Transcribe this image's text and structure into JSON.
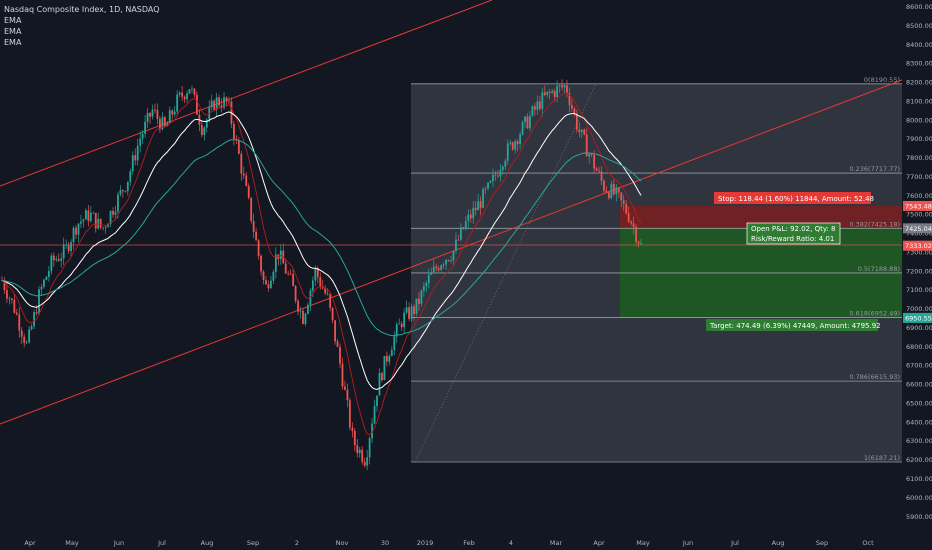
{
  "legend": {
    "title": "Nasdaq Composite Index, 1D, NASDAQ",
    "indicators": [
      "EMA",
      "EMA",
      "EMA"
    ]
  },
  "colors": {
    "background": "#131722",
    "up": "#26a69a",
    "down": "#ef5350",
    "channel": "#e53935",
    "ema_fast": "#b71c1c",
    "ema_mid": "#ffffff",
    "ema_slow": "#26a69a",
    "stop_zone": "#7a1f1f",
    "target_zone": "#1b5e20"
  },
  "chart_data": {
    "type": "candlestick",
    "title": "Nasdaq Composite Index, 1D, NASDAQ",
    "ylim": [
      5850,
      8650
    ],
    "y_ticks": [
      "8600.00",
      "8500.00",
      "8400.00",
      "8300.00",
      "8200.00",
      "8100.00",
      "8000.00",
      "7900.00",
      "7800.00",
      "7700.00",
      "7600.00",
      "7500.00",
      "7400.00",
      "7300.00",
      "7200.00",
      "7100.00",
      "7000.00",
      "6900.00",
      "6800.00",
      "6700.00",
      "6600.00",
      "6500.00",
      "6400.00",
      "6300.00",
      "6200.00",
      "6100.00",
      "6000.00",
      "5900.00"
    ],
    "x_ticks": [
      "Apr",
      "May",
      "Jun",
      "Jul",
      "Aug",
      "Sep",
      "2",
      "Nov",
      "30",
      "2019",
      "Feb",
      "4",
      "Mar",
      "Apr",
      "May",
      "Jun",
      "Jul",
      "Aug",
      "Sep",
      "Oct",
      "Nov"
    ],
    "price_path": [
      7150,
      7000,
      6800,
      7080,
      7250,
      7300,
      7450,
      7500,
      7420,
      7550,
      7680,
      7900,
      8050,
      7950,
      8100,
      8180,
      7950,
      8100,
      8090,
      7780,
      7450,
      7100,
      7300,
      7150,
      6950,
      7200,
      7050,
      6700,
      6300,
      6200,
      6600,
      6800,
      6950,
      7000,
      7150,
      7250,
      7300,
      7450,
      7550,
      7650,
      7800,
      7900,
      8000,
      8100,
      8150,
      8180,
      7950,
      7800,
      7650,
      7600,
      7500,
      7333
    ],
    "fib_levels": [
      {
        "label": "0(8190.55)",
        "value": 8190.55
      },
      {
        "label": "0.236(7717.77)",
        "value": 7717.77
      },
      {
        "label": "0.382(7425.18)",
        "value": 7425.18
      },
      {
        "label": "0.5(7188.88)",
        "value": 7188.88
      },
      {
        "label": "0.618(6952.49)",
        "value": 6952.49
      },
      {
        "label": "0.786(6615.93)",
        "value": 6615.93
      },
      {
        "label": "1(6187.21)",
        "value": 6187.21
      }
    ],
    "price_markers": [
      {
        "label": "7543.48",
        "value": 7543.48,
        "color": "#ef5350"
      },
      {
        "label": "7425.04",
        "value": 7425.04,
        "color": "#787b86"
      },
      {
        "label": "7333.02",
        "value": 7333.02,
        "color": "#ef5350"
      },
      {
        "label": "6950.55",
        "value": 6950.55,
        "color": "#26a69a"
      }
    ],
    "annotations": {
      "stop": "Stop: 118.44 (1.60%) 11844, Amount: 52.48",
      "pnl_line1": "Open P&L: 92.02, Qty: 8",
      "pnl_line2": "Risk/Reward Ratio: 4.01",
      "target": "Target: 474.49 (6.39%) 47449, Amount: 4795.92"
    },
    "position": {
      "entry": 7425.04,
      "stop": 7543.48,
      "target": 6950.55,
      "current": 7333.02
    }
  }
}
